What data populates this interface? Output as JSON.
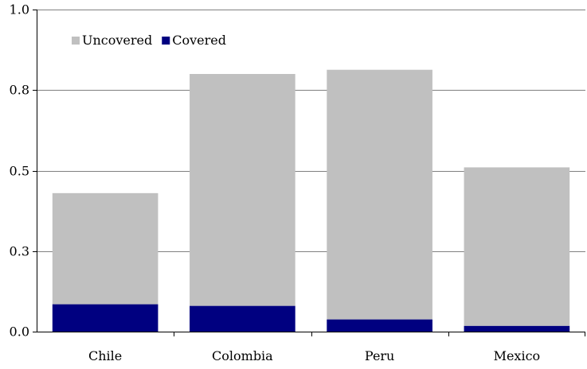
{
  "chart_data": {
    "type": "bar",
    "stacked": true,
    "categories": [
      "Chile",
      "Colombia",
      "Peru",
      "Mexico"
    ],
    "series": [
      {
        "name": "Covered",
        "values": [
          0.085,
          0.08,
          0.038,
          0.018
        ],
        "color": "#000080"
      },
      {
        "name": "Uncovered",
        "values": [
          0.345,
          0.72,
          0.775,
          0.492
        ],
        "color": "#c0c0c0"
      }
    ],
    "legend_order": [
      "Uncovered",
      "Covered"
    ],
    "legend_position": "top-left",
    "y_ticks": [
      "0.0",
      "0.3",
      "0.5",
      "0.8",
      "1.0"
    ],
    "y_tick_values": [
      0.0,
      0.25,
      0.5,
      0.75,
      1.0
    ],
    "ylim": [
      0,
      1.0
    ],
    "grid": "horizontal",
    "title": "",
    "xlabel": "",
    "ylabel": ""
  }
}
